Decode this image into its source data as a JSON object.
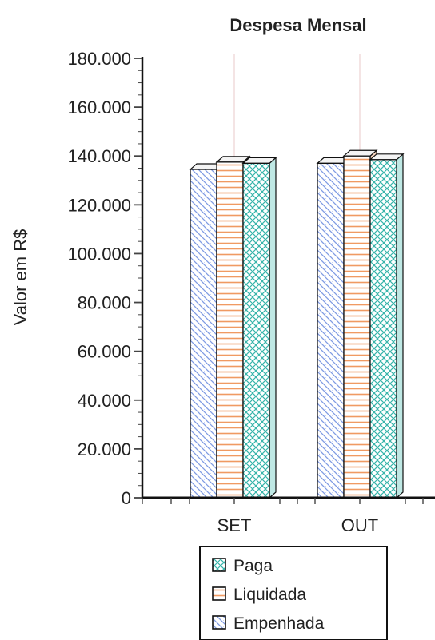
{
  "chart_data": {
    "type": "bar",
    "title": "Despesa Mensal",
    "xlabel": "",
    "ylabel": "Valor em R$",
    "ylim": [
      0,
      180000
    ],
    "yticks": [
      0,
      20000,
      40000,
      60000,
      80000,
      100000,
      120000,
      140000,
      160000,
      180000
    ],
    "ytick_labels": [
      "0",
      "20.000",
      "40.000",
      "60.000",
      "80.000",
      "100.000",
      "120.000",
      "140.000",
      "160.000",
      "180.000"
    ],
    "categories": [
      "SET",
      "OUT"
    ],
    "series": [
      {
        "name": "Empenhada",
        "values": [
          134500,
          137000
        ],
        "color": "#8fa8e8",
        "pattern": "diagonal"
      },
      {
        "name": "Liquidada",
        "values": [
          137500,
          140000
        ],
        "color": "#f0a070",
        "pattern": "horizontal"
      },
      {
        "name": "Paga",
        "values": [
          137000,
          138500
        ],
        "color": "#3cb9b0",
        "pattern": "crosshatch"
      }
    ],
    "legend": {
      "placement": "bottom",
      "entries": [
        "Paga",
        "Liquidada",
        "Empenhada"
      ]
    },
    "grid": false,
    "style": "3d"
  }
}
